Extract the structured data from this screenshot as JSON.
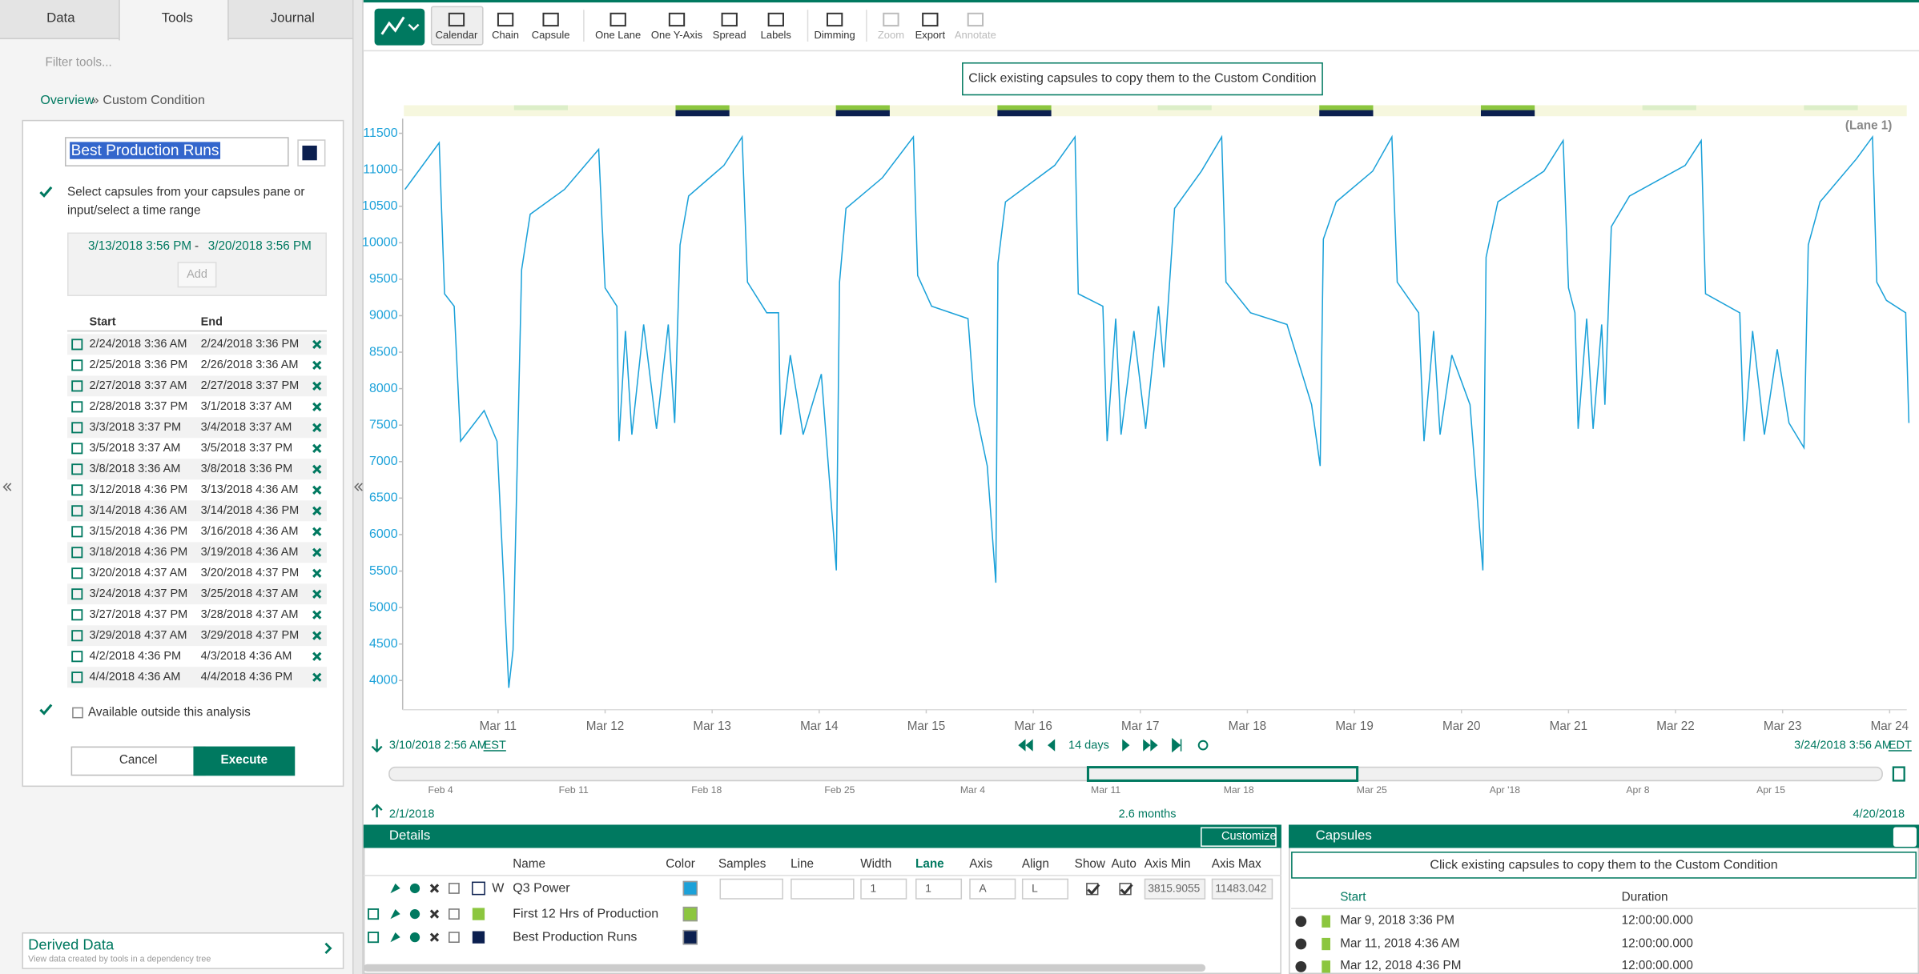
{
  "tabs": [
    "Data",
    "Tools",
    "Journal"
  ],
  "filter_placeholder": "Filter tools...",
  "breadcrumb": {
    "home": "Overview",
    "separator": "»",
    "current": "Custom Condition"
  },
  "tool": {
    "name": "Best Production Runs",
    "instruction_1": "Select capsules from your capsules pane or",
    "instruction_2": "input/select a time range",
    "range_start": "3/13/2018 3:56 PM",
    "range_separator": "-",
    "range_end": "3/20/2018 3:56 PM",
    "add": "Add",
    "columns": [
      "Start",
      "End"
    ],
    "rows": [
      [
        "2/24/2018 3:36 AM",
        "2/24/2018 3:36 PM"
      ],
      [
        "2/25/2018 3:36 PM",
        "2/26/2018 3:36 AM"
      ],
      [
        "2/27/2018 3:37 AM",
        "2/27/2018 3:37 PM"
      ],
      [
        "2/28/2018 3:37 PM",
        "3/1/2018 3:37 AM"
      ],
      [
        "3/3/2018 3:37 PM",
        "3/4/2018 3:37 AM"
      ],
      [
        "3/5/2018 3:37 AM",
        "3/5/2018 3:37 PM"
      ],
      [
        "3/8/2018 3:36 AM",
        "3/8/2018 3:36 PM"
      ],
      [
        "3/12/2018 4:36 PM",
        "3/13/2018 4:36 AM"
      ],
      [
        "3/14/2018 4:36 AM",
        "3/14/2018 4:36 PM"
      ],
      [
        "3/15/2018 4:36 PM",
        "3/16/2018 4:36 AM"
      ],
      [
        "3/18/2018 4:36 PM",
        "3/19/2018 4:36 AM"
      ],
      [
        "3/20/2018 4:37 AM",
        "3/20/2018 4:37 PM"
      ],
      [
        "3/24/2018 4:37 PM",
        "3/25/2018 4:37 AM"
      ],
      [
        "3/27/2018 4:37 PM",
        "3/28/2018 4:37 AM"
      ],
      [
        "3/29/2018 4:37 AM",
        "3/29/2018 4:37 PM"
      ],
      [
        "4/2/2018 4:36 PM",
        "4/3/2018 4:36 AM"
      ],
      [
        "4/4/2018 4:36 AM",
        "4/4/2018 4:36 PM"
      ]
    ],
    "available_outside": "Available outside this analysis",
    "cancel": "Cancel",
    "execute": "Execute"
  },
  "derived_data": {
    "title": "Derived Data",
    "subtitle": "View data created by tools in a dependency tree"
  },
  "toolbar": [
    "Calendar",
    "Chain",
    "Capsule",
    "One Lane",
    "One Y-Axis",
    "Spread",
    "Labels",
    "Dimming",
    "Zoom",
    "Export",
    "Annotate"
  ],
  "banner": "Click existing capsules to copy them to the Custom Condition",
  "chart_data": {
    "type": "line",
    "annotation": "(Lane 1)",
    "color": "#1ba1d9",
    "x": [
      10.13,
      10.45,
      10.5,
      10.59,
      10.65,
      10.87,
      10.99,
      11.1,
      11.14,
      11.22,
      11.3,
      11.62,
      11.94,
      12.0,
      12.11,
      12.13,
      12.19,
      12.25,
      12.36,
      12.48,
      12.59,
      12.65,
      12.7,
      12.78,
      13.11,
      13.28,
      13.33,
      13.51,
      13.62,
      13.64,
      13.73,
      13.85,
      14.02,
      14.16,
      14.19,
      14.25,
      14.59,
      14.88,
      14.92,
      15.05,
      15.39,
      15.45,
      15.57,
      15.65,
      15.67,
      15.74,
      16.2,
      16.39,
      16.42,
      16.65,
      16.69,
      16.77,
      16.82,
      16.94,
      17.05,
      17.17,
      17.22,
      17.32,
      17.57,
      17.76,
      17.8,
      18.03,
      18.37,
      18.6,
      18.68,
      18.71,
      18.83,
      19.17,
      19.35,
      19.4,
      19.6,
      19.65,
      19.74,
      19.8,
      19.91,
      20.08,
      20.2,
      20.23,
      20.34,
      20.77,
      20.95,
      21.0,
      21.06,
      21.09,
      21.17,
      21.23,
      21.31,
      21.34,
      21.4,
      21.57,
      22.09,
      22.24,
      22.28,
      22.6,
      22.64,
      22.72,
      22.83,
      22.95,
      23.06,
      23.2,
      23.24,
      23.35,
      23.69,
      23.84,
      23.88,
      23.97,
      24.15,
      24.18
    ],
    "values": [
      10730,
      11370,
      9300,
      9130,
      7280,
      7700,
      7280,
      3900,
      4420,
      9630,
      10390,
      10730,
      11280,
      9380,
      9130,
      7280,
      8790,
      7370,
      8880,
      7450,
      8880,
      7530,
      9970,
      10640,
      11060,
      11450,
      9460,
      9040,
      9040,
      7370,
      8460,
      7370,
      8200,
      5510,
      9460,
      10470,
      10890,
      11450,
      9550,
      9130,
      8960,
      7780,
      6940,
      5340,
      9720,
      10560,
      11060,
      11450,
      9300,
      9130,
      7280,
      8960,
      7370,
      8790,
      7450,
      9130,
      8290,
      10470,
      10980,
      11450,
      9460,
      9040,
      8880,
      7780,
      6940,
      10050,
      10560,
      10980,
      11450,
      9460,
      9040,
      7280,
      8790,
      7370,
      8460,
      7780,
      5510,
      9800,
      10560,
      10980,
      11400,
      9380,
      9040,
      7450,
      8960,
      7450,
      8880,
      7780,
      10220,
      10640,
      11060,
      11400,
      9300,
      9040,
      7280,
      8790,
      7370,
      8540,
      7530,
      7190,
      9970,
      10560,
      11150,
      11450,
      9460,
      9210,
      9040,
      7530
    ],
    "xlim": [
      10.12,
      24.16
    ],
    "xticks": [
      {
        "value": 11,
        "label": "Mar 11"
      },
      {
        "value": 12,
        "label": "Mar 12"
      },
      {
        "value": 13,
        "label": "Mar 13"
      },
      {
        "value": 14,
        "label": "Mar 14"
      },
      {
        "value": 15,
        "label": "Mar 15"
      },
      {
        "value": 16,
        "label": "Mar 16"
      },
      {
        "value": 17,
        "label": "Mar 17"
      },
      {
        "value": 18,
        "label": "Mar 18"
      },
      {
        "value": 19,
        "label": "Mar 19"
      },
      {
        "value": 20,
        "label": "Mar 20"
      },
      {
        "value": 21,
        "label": "Mar 21"
      },
      {
        "value": 22,
        "label": "Mar 22"
      },
      {
        "value": 23,
        "label": "Mar 23"
      },
      {
        "value": 24,
        "label": "Mar 24"
      }
    ],
    "ylim": [
      3600,
      11700
    ],
    "yticks": [
      4000,
      4500,
      5000,
      5500,
      6000,
      6500,
      7000,
      7500,
      8000,
      8500,
      9000,
      9500,
      10000,
      10500,
      11000,
      11500
    ]
  },
  "time_bar": {
    "start": "3/10/2018 2:56 AM",
    "start_zone": "EST",
    "duration": "14 days",
    "end": "3/24/2018 3:56 AM",
    "end_zone": "EDT"
  },
  "navigator": {
    "labels": [
      "Feb 4",
      "Feb 11",
      "Feb 18",
      "Feb 25",
      "Mar 4",
      "Mar 11",
      "Mar 18",
      "Mar 25",
      "Apr '18",
      "Apr 8",
      "Apr 15"
    ],
    "start": "2/1/2018",
    "duration": "2.6 months",
    "end": "4/20/2018"
  },
  "details": {
    "title": "Details",
    "customize": "Customize",
    "columns": [
      "Name",
      "Color",
      "Samples",
      "Line",
      "Width",
      "Lane",
      "Axis",
      "Align",
      "Show",
      "Auto",
      "Axis Min",
      "Axis Max"
    ],
    "rows": [
      {
        "name": "Q3 Power",
        "type": "W",
        "color": "#1ba1d9",
        "width": 1,
        "lane": 1,
        "axis": "A",
        "align": "L",
        "axis_min": "3815.9055",
        "axis_max": "11483.042"
      },
      {
        "name": "First 12 Hrs of Production",
        "color": "#8cc63f"
      },
      {
        "name": "Best Production Runs",
        "color": "#0b1f4f"
      }
    ]
  },
  "capsules": {
    "title": "Capsules",
    "banner": "Click existing capsules to copy them to the Custom Condition",
    "columns": [
      "Start",
      "Duration"
    ],
    "rows": [
      [
        "Mar 9, 2018 3:36 PM",
        "12:00:00.000"
      ],
      [
        "Mar 11, 2018 4:36 AM",
        "12:00:00.000"
      ],
      [
        "Mar 12, 2018 4:36 PM",
        "12:00:00.000"
      ]
    ]
  }
}
